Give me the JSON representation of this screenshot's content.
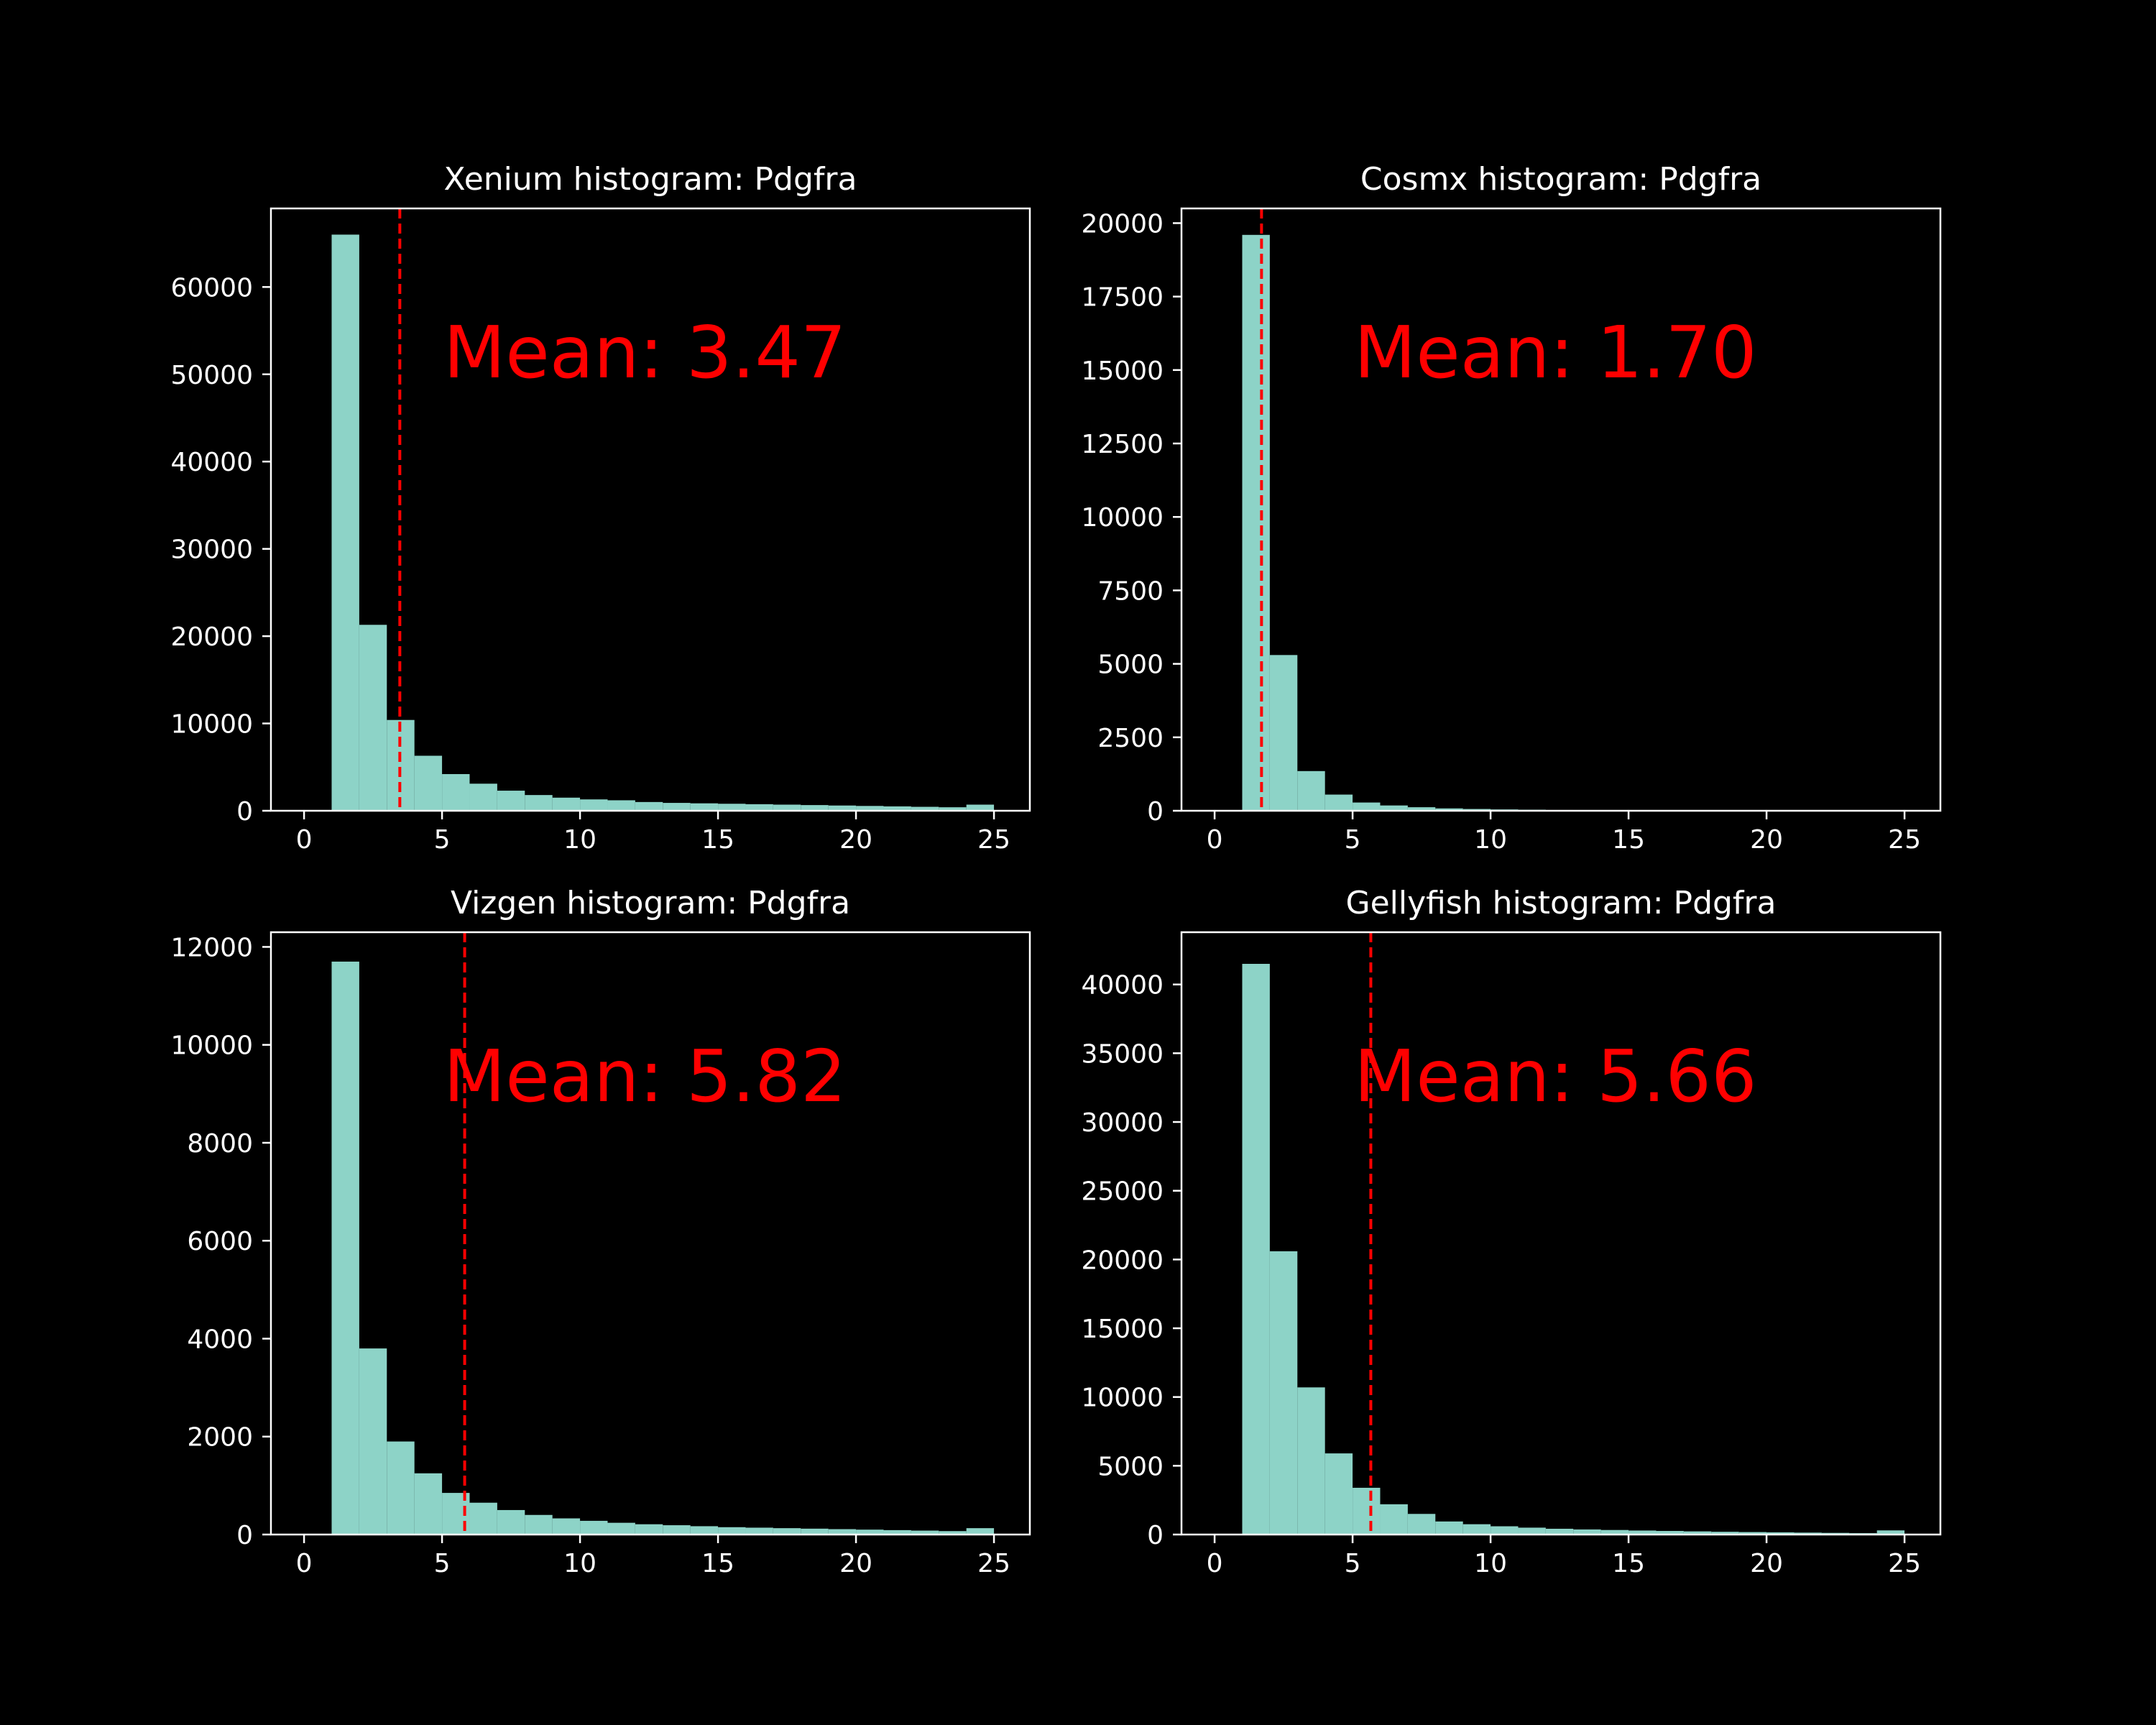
{
  "figure": {
    "background": "#000000"
  },
  "chart_data": [
    {
      "type": "bar",
      "title": "Xenium histogram: Pdgfra",
      "xlim": [
        -1.2,
        26.3
      ],
      "ylim": [
        0,
        69000
      ],
      "xticks": [
        0,
        5,
        10,
        15,
        20,
        25
      ],
      "yticks": [
        0,
        10000,
        20000,
        30000,
        40000,
        50000,
        60000
      ],
      "bin_edges": [
        1,
        2,
        3,
        4,
        5,
        6,
        7,
        8,
        9,
        10,
        11,
        12,
        13,
        14,
        15,
        16,
        17,
        18,
        19,
        20,
        21,
        22,
        23,
        24,
        25
      ],
      "counts": [
        66000,
        21300,
        10400,
        6300,
        4200,
        3100,
        2300,
        1800,
        1500,
        1300,
        1200,
        1000,
        900,
        850,
        800,
        750,
        700,
        650,
        600,
        550,
        500,
        450,
        400,
        700
      ],
      "mean": 3.47,
      "mean_label": "Mean: 3.47",
      "bar_color": "#8dd3c7",
      "mean_color": "#ff0000"
    },
    {
      "type": "bar",
      "title": "Cosmx histogram: Pdgfra",
      "xlim": [
        -1.2,
        26.3
      ],
      "ylim": [
        0,
        20500
      ],
      "xticks": [
        0,
        5,
        10,
        15,
        20,
        25
      ],
      "yticks": [
        0,
        2500,
        5000,
        7500,
        10000,
        12500,
        15000,
        17500,
        20000
      ],
      "bin_edges": [
        1,
        2,
        3,
        4,
        5,
        6,
        7,
        8,
        9,
        10,
        11,
        12,
        13,
        14,
        15,
        16,
        17,
        18,
        19,
        20,
        21,
        22,
        23,
        24,
        25
      ],
      "counts": [
        19600,
        5300,
        1350,
        550,
        280,
        180,
        120,
        80,
        60,
        45,
        35,
        25,
        20,
        15,
        12,
        10,
        8,
        6,
        5,
        4,
        3,
        3,
        2,
        2
      ],
      "mean": 1.7,
      "mean_label": "Mean: 1.70",
      "bar_color": "#8dd3c7",
      "mean_color": "#ff0000"
    },
    {
      "type": "bar",
      "title": "Vizgen histogram: Pdgfra",
      "xlim": [
        -1.2,
        26.3
      ],
      "ylim": [
        0,
        12300
      ],
      "xticks": [
        0,
        5,
        10,
        15,
        20,
        25
      ],
      "yticks": [
        0,
        2000,
        4000,
        6000,
        8000,
        10000,
        12000
      ],
      "bin_edges": [
        1,
        2,
        3,
        4,
        5,
        6,
        7,
        8,
        9,
        10,
        11,
        12,
        13,
        14,
        15,
        16,
        17,
        18,
        19,
        20,
        21,
        22,
        23,
        24,
        25
      ],
      "counts": [
        11700,
        3800,
        1900,
        1250,
        850,
        650,
        500,
        400,
        330,
        280,
        240,
        210,
        190,
        170,
        150,
        140,
        130,
        120,
        110,
        100,
        90,
        80,
        70,
        130
      ],
      "mean": 5.82,
      "mean_label": "Mean: 5.82",
      "bar_color": "#8dd3c7",
      "mean_color": "#ff0000"
    },
    {
      "type": "bar",
      "title": "Gellyfish histogram: Pdgfra",
      "xlim": [
        -1.2,
        26.3
      ],
      "ylim": [
        0,
        43800
      ],
      "xticks": [
        0,
        5,
        10,
        15,
        20,
        25
      ],
      "yticks": [
        0,
        5000,
        10000,
        15000,
        20000,
        25000,
        30000,
        35000,
        40000
      ],
      "bin_edges": [
        1,
        2,
        3,
        4,
        5,
        6,
        7,
        8,
        9,
        10,
        11,
        12,
        13,
        14,
        15,
        16,
        17,
        18,
        19,
        20,
        21,
        22,
        23,
        24,
        25
      ],
      "counts": [
        41500,
        20600,
        10700,
        5900,
        3400,
        2200,
        1500,
        950,
        750,
        600,
        500,
        420,
        370,
        330,
        290,
        260,
        230,
        200,
        180,
        160,
        140,
        120,
        100,
        300
      ],
      "mean": 5.66,
      "mean_label": "Mean: 5.66",
      "bar_color": "#8dd3c7",
      "mean_color": "#ff0000"
    }
  ]
}
